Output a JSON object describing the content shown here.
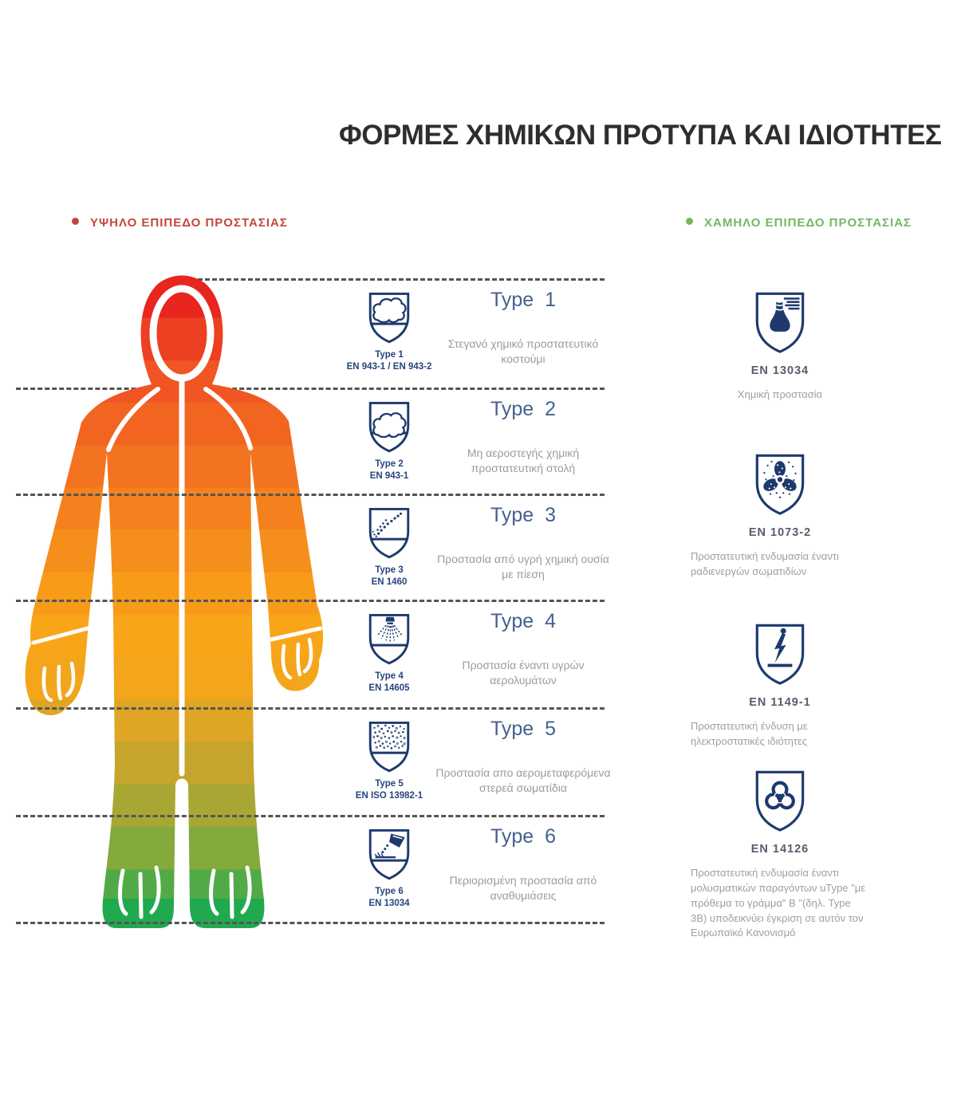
{
  "title": "ΦΟΡΜΕΣ ΧΗΜΙΚΩΝ ΠΡΟΤΥΠΑ ΚΑΙ ΙΔΙΟΤΗΤΕΣ",
  "legend": {
    "high": {
      "label": "ΥΨΗΛΟ ΕΠΙΠΕΔΟ ΠΡΟΣΤΑΣΙΑΣ",
      "color": "#c5463c"
    },
    "low": {
      "label": "ΧΑΜΗΛΟ ΕΠΙΠΕΔΟ ΠΡΟΣΤΑΣΙΑΣ",
      "color": "#74b763"
    }
  },
  "types": [
    {
      "heading": "Type 1",
      "label_line1": "Type 1",
      "label_line2": "EN 943-1 / EN 943-2",
      "description": "Στεγανό χημικό προστατευτικό κοστούμι",
      "icon": "gas-cloud"
    },
    {
      "heading": "Type 2",
      "label_line1": "Type 2",
      "label_line2": "EN 943-1",
      "description": "Μη αεροστεγής χημική προστατευτική στολή",
      "icon": "gas-cloud-open"
    },
    {
      "heading": "Type 3",
      "label_line1": "Type 3",
      "label_line2": "EN 1460",
      "description": "Προστασία από υγρή χημική ουσία με πίεση",
      "icon": "liquid-jet"
    },
    {
      "heading": "Type 4",
      "label_line1": "Type 4",
      "label_line2": "EN 14605",
      "description": "Προστασία έναντι υγρών αερολυμάτων",
      "icon": "spray-aerosol"
    },
    {
      "heading": "Type 5",
      "label_line1": "Type 5",
      "label_line2": "EN ISO 13982-1",
      "description": "Προστασία απο αερομεταφερόμενα στερεά σωματίδια",
      "icon": "particles"
    },
    {
      "heading": "Type 6",
      "label_line1": "Type 6",
      "label_line2": "EN 13034",
      "description": "Περιορισμένη προστασία από αναθυμιάσεις",
      "icon": "splash"
    }
  ],
  "standards": [
    {
      "code": "EN 13034",
      "description": "Χημική προστασία",
      "icon": "flask"
    },
    {
      "code": "EN 1073-2",
      "description": "Προστατευτική ενδυμασία έναντι ραδιενεργών σωματιδίων",
      "icon": "radioactive"
    },
    {
      "code": "EN 1149-1",
      "description": "Προστατευτική ένδυση με ηλεκτροστατικές ιδιότητες",
      "icon": "electrostatic"
    },
    {
      "code": "EN 14126",
      "description": "Προστατευτική ενδυμασία έναντι μολυσματικών παραγόντων uType \"με πρόθεμα το γράμμα\" B \"(δηλ. Type 3B) υποδεικνύει έγκριση σε αυτόν τον Ευρωπαϊκό Κανονισμό",
      "icon": "biohazard"
    }
  ],
  "colors": {
    "navy": "#1e3a6d",
    "heading_blue": "#44618e",
    "text_gray": "#9b9b9b",
    "suit_top_red": "#e8261f",
    "suit_mid_orange": "#f5811e",
    "suit_amber": "#f9a519",
    "suit_olive": "#a8a734",
    "suit_bottom_green": "#21a950"
  }
}
